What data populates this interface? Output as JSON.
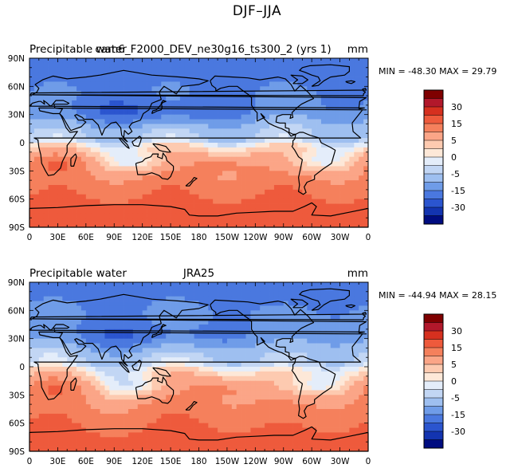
{
  "figure": {
    "title": "DJF–JJA"
  },
  "chart_data": [
    {
      "type": "heatmap",
      "left_label": "Precipitable water",
      "center_label": "cam6_F2000_DEV_ne30g16_ts300_2 (yrs 1)",
      "units": "mm",
      "stats_text": "MIN = -48.30 MAX =   29.79",
      "min": -48.3,
      "max": 29.79,
      "x_ticks": [
        "0",
        "30E",
        "60E",
        "90E",
        "120E",
        "150E",
        "180",
        "150W",
        "120W",
        "90W",
        "60W",
        "30W",
        "0"
      ],
      "y_ticks": [
        "90N",
        "60N",
        "30N",
        "0",
        "30S",
        "60S",
        "90S"
      ],
      "x_range": [
        0,
        360
      ],
      "y_range": [
        -90,
        90
      ],
      "colorbar_labels": [
        "30",
        "15",
        "5",
        "0",
        "-5",
        "-15",
        "-30"
      ]
    },
    {
      "type": "heatmap",
      "left_label": "Precipitable water",
      "center_label": "JRA25",
      "units": "mm",
      "stats_text": "MIN = -44.94 MAX =   28.15",
      "min": -44.94,
      "max": 28.15,
      "x_ticks": [
        "0",
        "30E",
        "60E",
        "90E",
        "120E",
        "150E",
        "180",
        "150W",
        "120W",
        "90W",
        "60W",
        "30W",
        "0"
      ],
      "y_ticks": [
        "90N",
        "60N",
        "30N",
        "0",
        "30S",
        "60S",
        "90S"
      ],
      "x_range": [
        0,
        360
      ],
      "y_range": [
        -90,
        90
      ],
      "colorbar_labels": [
        "30",
        "15",
        "5",
        "0",
        "-5",
        "-15",
        "-30"
      ]
    }
  ],
  "colorbar_colors": [
    "#7f0000",
    "#b2182b",
    "#d6301f",
    "#ee5a3c",
    "#f5805c",
    "#fba587",
    "#fdcab0",
    "#fde8d8",
    "#e4edfa",
    "#c2d6f4",
    "#9ebff0",
    "#6f9ce8",
    "#4a78df",
    "#2b55cf",
    "#1334b0",
    "#000c80"
  ],
  "colors": {
    "coast": "#000000"
  }
}
